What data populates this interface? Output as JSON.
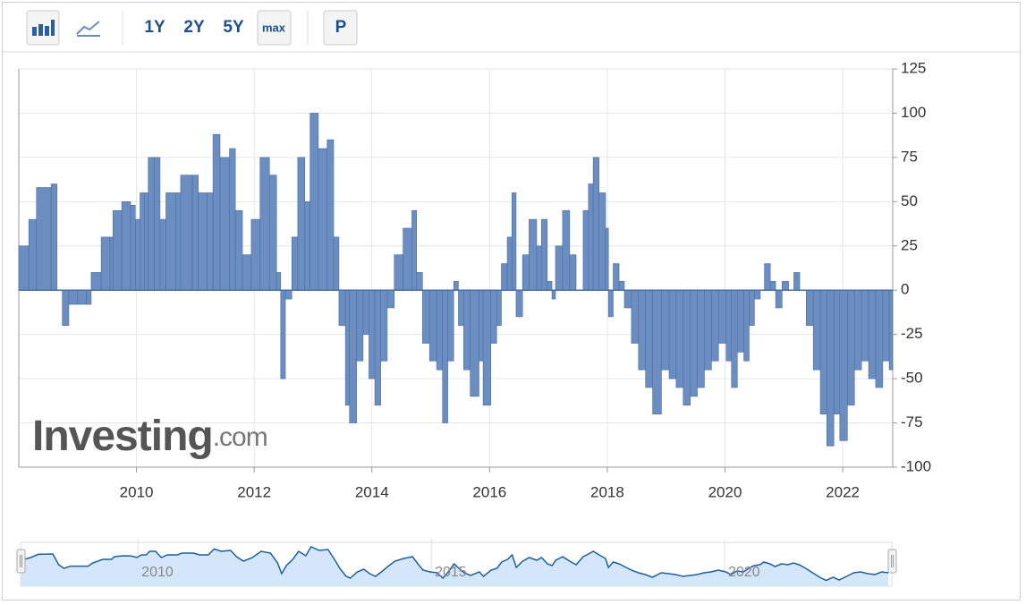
{
  "toolbar": {
    "buttons": [
      "1Y",
      "2Y",
      "5Y",
      "max",
      "P"
    ]
  },
  "watermark": {
    "brand": "Investing",
    "suffix": ".com"
  },
  "chart_data": {
    "type": "bar",
    "color": "#6b8dc0",
    "x": [
      2008.0,
      2008.17,
      2008.3,
      2008.55,
      2008.65,
      2008.74,
      2008.85,
      2009.0,
      2009.15,
      2009.23,
      2009.4,
      2009.55,
      2009.6,
      2009.75,
      2009.9,
      2009.98,
      2010.06,
      2010.14,
      2010.2,
      2010.3,
      2010.4,
      2010.5,
      2010.67,
      2010.75,
      2010.95,
      2011.05,
      2011.2,
      2011.3,
      2011.42,
      2011.58,
      2011.68,
      2011.8,
      2011.95,
      2012.1,
      2012.26,
      2012.38,
      2012.45,
      2012.53,
      2012.64,
      2012.74,
      2012.86,
      2012.95,
      2013.09,
      2013.24,
      2013.35,
      2013.44,
      2013.55,
      2013.62,
      2013.74,
      2013.85,
      2013.95,
      2014.05,
      2014.15,
      2014.26,
      2014.38,
      2014.53,
      2014.68,
      2014.76,
      2014.86,
      2014.98,
      2015.1,
      2015.2,
      2015.29,
      2015.39,
      2015.47,
      2015.56,
      2015.67,
      2015.82,
      2015.89,
      2016.02,
      2016.12,
      2016.2,
      2016.3,
      2016.38,
      2016.45,
      2016.56,
      2016.67,
      2016.8,
      2016.88,
      2016.98,
      2017.06,
      2017.12,
      2017.24,
      2017.36,
      2017.47,
      2017.59,
      2017.68,
      2017.76,
      2017.86,
      2017.97,
      2018.02,
      2018.1,
      2018.2,
      2018.29,
      2018.41,
      2018.53,
      2018.65,
      2018.77,
      2018.92,
      2019.05,
      2019.17,
      2019.29,
      2019.41,
      2019.53,
      2019.65,
      2019.77,
      2019.89,
      2020.02,
      2020.11,
      2020.21,
      2020.32,
      2020.41,
      2020.5,
      2020.6,
      2020.67,
      2020.77,
      2020.86,
      2020.97,
      2021.08,
      2021.17,
      2021.27,
      2021.38,
      2021.5,
      2021.62,
      2021.73,
      2021.85,
      2021.95,
      2022.08,
      2022.2,
      2022.32,
      2022.44,
      2022.56,
      2022.68,
      2022.79
    ],
    "values": [
      25,
      40,
      58,
      60,
      0,
      -20,
      -8,
      -8,
      -8,
      10,
      30,
      30,
      45,
      50,
      48,
      40,
      55,
      55,
      75,
      75,
      40,
      55,
      55,
      65,
      65,
      55,
      55,
      88,
      75,
      80,
      45,
      20,
      40,
      75,
      65,
      10,
      -50,
      -5,
      30,
      75,
      50,
      100,
      80,
      85,
      30,
      -20,
      -65,
      -75,
      -40,
      -25,
      -50,
      -65,
      -40,
      -10,
      20,
      35,
      45,
      10,
      -30,
      -40,
      -45,
      -75,
      -40,
      5,
      -20,
      -45,
      -60,
      -40,
      -65,
      -30,
      -20,
      15,
      30,
      55,
      -15,
      20,
      40,
      25,
      40,
      5,
      -5,
      25,
      45,
      20,
      0,
      45,
      60,
      75,
      55,
      35,
      -15,
      15,
      5,
      -10,
      -30,
      -45,
      -55,
      -70,
      -45,
      -50,
      -55,
      -65,
      -60,
      -55,
      -45,
      -40,
      -30,
      -40,
      -55,
      -35,
      -40,
      -20,
      -5,
      0,
      15,
      5,
      -10,
      5,
      0,
      10,
      0,
      -20,
      -45,
      -70,
      -88,
      -70,
      -85,
      -65,
      -45,
      -40,
      -50,
      -55,
      -40,
      -45
    ],
    "xlim": [
      2008.0,
      2022.85
    ],
    "xticks": [
      2010,
      2012,
      2014,
      2016,
      2018,
      2020,
      2022
    ],
    "ylim": [
      -100,
      125
    ],
    "yticks": [
      -100,
      -75,
      -50,
      -25,
      0,
      25,
      50,
      75,
      100,
      125
    ],
    "grid": true
  },
  "navigator": {
    "xticks": [
      2010,
      2015,
      2020
    ]
  }
}
